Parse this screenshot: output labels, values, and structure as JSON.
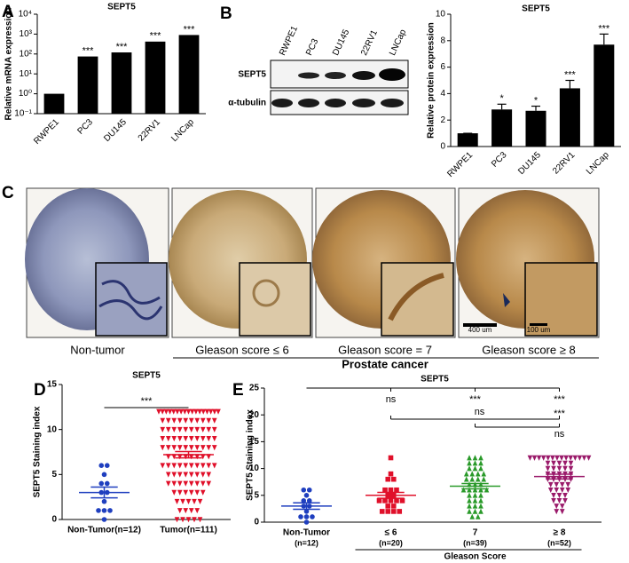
{
  "panel_labels": [
    "A",
    "B",
    "C",
    "D",
    "E"
  ],
  "blot": {
    "lanes": [
      "RWPE1",
      "PC3",
      "DU145",
      "22RV1",
      "LNCap"
    ],
    "rows": [
      "SEPT5",
      "α-tubulin"
    ]
  },
  "histology": {
    "captions": [
      "Non-tumor",
      "Gleason score ≤ 6",
      "Gleason score = 7",
      "Gleason score ≥ 8"
    ],
    "group_label": "Prostate cancer",
    "scale_bars": [
      "400 um",
      "100 um"
    ]
  },
  "chart_data": [
    {
      "type": "bar",
      "title": "SEPT5",
      "y_label": "Relative mRNA expression",
      "log": true,
      "categories": [
        "RWPE1",
        "PC3",
        "DU145",
        "22RV1",
        "LNCap"
      ],
      "values": [
        1,
        75,
        120,
        420,
        900
      ],
      "color": "#000000",
      "annotations": [
        null,
        "***",
        "***",
        "***",
        "***"
      ],
      "ylim": [
        0.1,
        10000
      ],
      "yticks": [
        {
          "value": 0.1,
          "label": "10⁻¹"
        },
        {
          "value": 1,
          "label": "10⁰"
        },
        {
          "value": 10,
          "label": "10¹"
        },
        {
          "value": 100,
          "label": "10²"
        },
        {
          "value": 1000,
          "label": "10³"
        },
        {
          "value": 10000,
          "label": "10⁴"
        }
      ]
    },
    {
      "type": "bar",
      "title": "SEPT5",
      "y_label": "Relative protein expression",
      "log": false,
      "categories": [
        "RWPE1",
        "PC3",
        "DU145",
        "22RV1",
        "LNCap"
      ],
      "values": [
        1,
        2.8,
        2.7,
        4.4,
        7.7
      ],
      "errors": [
        0,
        0.4,
        0.35,
        0.6,
        0.8
      ],
      "color": "#000000",
      "annotations": [
        null,
        "*",
        "*",
        "***",
        "***"
      ],
      "ylim": [
        0,
        10
      ],
      "yticks": [
        0,
        2,
        4,
        6,
        8,
        10
      ]
    },
    {
      "type": "dotplot",
      "title": "SEPT5",
      "y_label": "SEPT5 Staining index",
      "categories": [
        "Non-Tumor(n=12)",
        "Tumor(n=111)"
      ],
      "groups": [
        {
          "color": "#1f3fbf",
          "marker": "circle",
          "values": [
            6,
            6,
            5,
            4,
            4,
            3,
            3,
            2,
            1,
            1,
            1,
            0
          ],
          "mean": 3,
          "sem": 0.6
        },
        {
          "color": "#e0102a",
          "marker": "triangle-down",
          "values": [
            12,
            12,
            12,
            12,
            12,
            12,
            12,
            12,
            12,
            12,
            12,
            12,
            12,
            12,
            12,
            12,
            12,
            11,
            11,
            11,
            11,
            11,
            11,
            11,
            11,
            11,
            11,
            10,
            10,
            10,
            10,
            10,
            10,
            10,
            10,
            10,
            10,
            9,
            9,
            9,
            9,
            9,
            9,
            9,
            9,
            9,
            9,
            8,
            8,
            8,
            8,
            8,
            8,
            8,
            8,
            8,
            8,
            7,
            7,
            7,
            7,
            7,
            7,
            7,
            7,
            6,
            6,
            6,
            6,
            6,
            6,
            6,
            6,
            6,
            6,
            5,
            5,
            5,
            5,
            5,
            5,
            5,
            5,
            4,
            4,
            4,
            4,
            4,
            4,
            4,
            4,
            3,
            3,
            3,
            3,
            3,
            3,
            2,
            2,
            2,
            2,
            2,
            1,
            1,
            1,
            1,
            0,
            0,
            0,
            0,
            0
          ],
          "mean": 7.2,
          "sem": 0.35
        }
      ],
      "comparisons": [
        "***"
      ],
      "ylim": [
        0,
        15
      ],
      "yticks": [
        0,
        5,
        10,
        15
      ]
    },
    {
      "type": "dotplot",
      "title": "SEPT5",
      "y_label": "SEPT5 Staining index",
      "x_label": "Gleason Score",
      "categories": [
        "Non-Tumor",
        "≤ 6",
        "7",
        "≥ 8"
      ],
      "n_labels": [
        "(n=12)",
        "(n=20)",
        "(n=39)",
        "(n=52)"
      ],
      "groups": [
        {
          "color": "#1f3fbf",
          "marker": "circle",
          "values": [
            6,
            6,
            5,
            4,
            4,
            3,
            3,
            2,
            1,
            1,
            1,
            0
          ],
          "mean": 3,
          "sem": 0.6
        },
        {
          "color": "#e0102a",
          "marker": "square",
          "values": [
            12,
            9,
            8,
            8,
            6,
            6,
            6,
            5,
            5,
            4,
            4,
            4,
            4,
            4,
            3,
            3,
            2,
            2,
            2,
            2
          ],
          "mean": 5,
          "sem": 0.55
        },
        {
          "color": "#2a9a2a",
          "marker": "triangle-up",
          "values": [
            12,
            12,
            12,
            11,
            11,
            11,
            10,
            10,
            10,
            9,
            9,
            9,
            9,
            8,
            8,
            8,
            8,
            7,
            7,
            7,
            6,
            6,
            6,
            6,
            6,
            5,
            5,
            5,
            4,
            4,
            4,
            3,
            3,
            3,
            2,
            2,
            2,
            1,
            1
          ],
          "mean": 6.7,
          "sem": 0.5
        },
        {
          "color": "#9a1a6a",
          "marker": "triangle-down",
          "values": [
            12,
            12,
            12,
            12,
            12,
            12,
            12,
            12,
            12,
            12,
            12,
            12,
            12,
            12,
            11,
            11,
            11,
            11,
            11,
            10,
            10,
            10,
            10,
            10,
            9,
            9,
            9,
            9,
            9,
            8,
            8,
            8,
            8,
            8,
            7,
            7,
            7,
            7,
            6,
            6,
            6,
            6,
            5,
            5,
            5,
            4,
            4,
            4,
            3,
            3,
            2,
            2
          ],
          "mean": 8.5,
          "sem": 0.45
        }
      ],
      "comparisons": [
        "ns",
        "***",
        "***",
        "ns",
        "***",
        "ns"
      ],
      "ylim": [
        0,
        25
      ],
      "yticks": [
        0,
        5,
        10,
        15,
        20,
        25
      ]
    }
  ]
}
